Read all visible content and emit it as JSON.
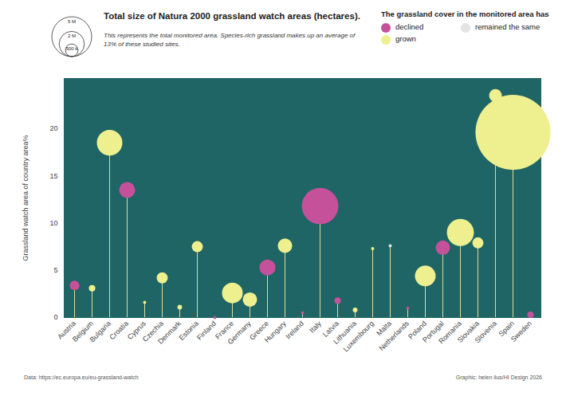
{
  "chart_data": {
    "type": "lollipop",
    "title": "Total size of Natura 2000 grassland watch areas (hectares).",
    "subtitle": "This represents the total monitored area. Species-rich grassland makes up an average of 13% of these studied sites.",
    "y_label": "Grassland watch area of country area%",
    "legend_title": "The grassland cover in the monitored area has",
    "legend": "top-right",
    "size_legend": {
      "values": [
        5000000,
        2000000,
        500000
      ],
      "labels": [
        "5 M",
        "2 M",
        "500 k"
      ]
    },
    "categories": [
      "Austria",
      "Belgium",
      "Bulgaria",
      "Croatia",
      "Cyprus",
      "Czechia",
      "Denmark",
      "Estonia",
      "Finland",
      "France",
      "Germany",
      "Greece",
      "Hungary",
      "Ireland",
      "Italy",
      "Latvia",
      "Lithuania",
      "Luxembourg",
      "Malta",
      "Netherlands",
      "Poland",
      "Portugal",
      "Romania",
      "Slovakia",
      "Slovenia",
      "Spain",
      "Sweden"
    ],
    "series": [
      {
        "name": "declined",
        "color": "#c5519b",
        "values": [
          3.4,
          null,
          null,
          13.5,
          null,
          null,
          null,
          null,
          0,
          null,
          null,
          5.3,
          null,
          0.5,
          11.8,
          1.8,
          null,
          null,
          null,
          1,
          null,
          7.4,
          null,
          null,
          null,
          null,
          0.3
        ],
        "sizes": [
          290000,
          null,
          null,
          800000,
          null,
          null,
          null,
          null,
          30000,
          null,
          null,
          800000,
          null,
          30000,
          4200000,
          130000,
          null,
          null,
          null,
          30000,
          null,
          650000,
          null,
          null,
          null,
          null,
          130000
        ]
      },
      {
        "name": "grown",
        "color": "#eef08f",
        "values": [
          null,
          3.1,
          18.5,
          null,
          1.6,
          4.2,
          1.1,
          7.5,
          null,
          2.6,
          1.9,
          null,
          7.6,
          null,
          null,
          null,
          0.8,
          7.3,
          null,
          null,
          4.4,
          null,
          9.0,
          7.9,
          23.5,
          19.6,
          null
        ],
        "sizes": [
          null,
          130000,
          2050000,
          null,
          30000,
          390000,
          70000,
          390000,
          null,
          1350000,
          650000,
          null,
          650000,
          null,
          null,
          null,
          70000,
          30000,
          null,
          null,
          1350000,
          null,
          2300000,
          390000,
          510000,
          17700000,
          null
        ]
      },
      {
        "name": "remained the same",
        "color": "#e4e4e4",
        "values": [
          null,
          null,
          null,
          null,
          null,
          null,
          null,
          null,
          null,
          null,
          null,
          null,
          null,
          null,
          null,
          null,
          null,
          null,
          7.6,
          null,
          null,
          null,
          null,
          null,
          null,
          null,
          null
        ],
        "sizes": [
          null,
          null,
          null,
          null,
          null,
          null,
          null,
          null,
          null,
          null,
          null,
          null,
          null,
          null,
          null,
          null,
          null,
          null,
          30000,
          null,
          null,
          null,
          null,
          null,
          null,
          null,
          null
        ]
      }
    ],
    "ylim": [
      0,
      25.3
    ],
    "yticks": [
      0,
      5,
      10,
      15,
      20
    ],
    "source": "Data: https://ec.europa.eu/eu-grassland-watch",
    "credit": "Graphic: helen ilus/HI Design 2026"
  }
}
